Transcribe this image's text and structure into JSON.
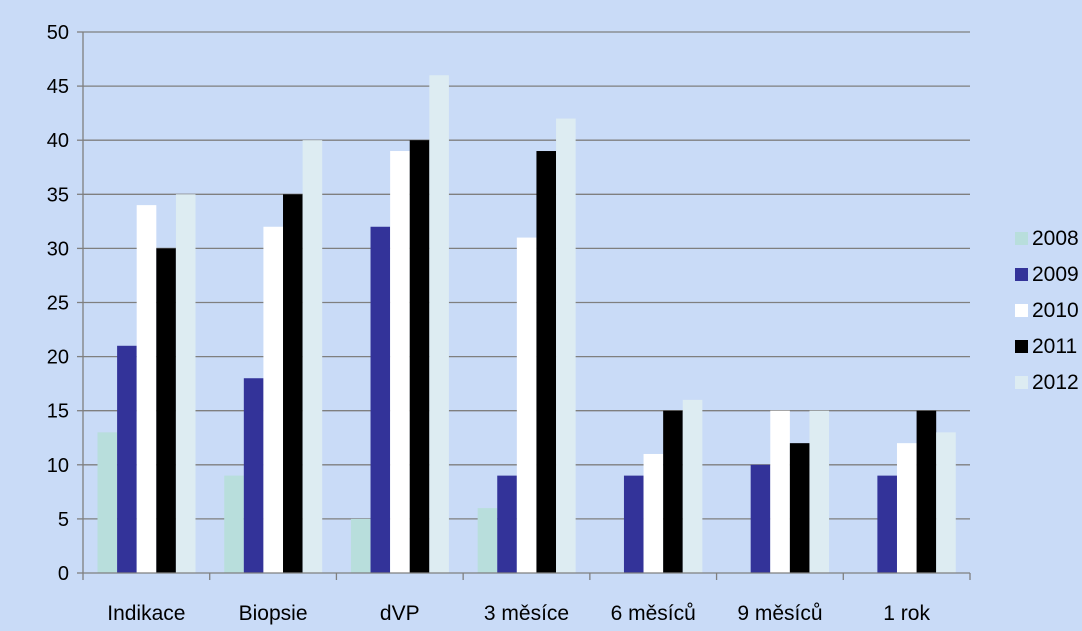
{
  "chart_data": {
    "type": "bar",
    "title": "",
    "xlabel": "",
    "ylabel": "",
    "ylim": [
      0,
      50
    ],
    "ytick_step": 5,
    "grid": true,
    "legend_position": "right",
    "categories": [
      "Indikace",
      "Biopsie",
      "dVP",
      "3 měsíce",
      "6 měsíců",
      "9 měsíců",
      "1 rok"
    ],
    "series": [
      {
        "name": "2008",
        "color": "#b8dedc",
        "values": [
          13,
          9,
          5,
          6,
          0,
          0,
          0
        ]
      },
      {
        "name": "2009",
        "color": "#333399",
        "values": [
          21,
          18,
          32,
          9,
          9,
          10,
          9
        ]
      },
      {
        "name": "2010",
        "color": "#ffffff",
        "values": [
          34,
          32,
          39,
          31,
          11,
          15,
          12
        ]
      },
      {
        "name": "2011",
        "color": "#000000",
        "values": [
          30,
          35,
          40,
          39,
          15,
          12,
          15
        ]
      },
      {
        "name": "2012",
        "color": "#ddecf2",
        "values": [
          35,
          40,
          46,
          42,
          16,
          15,
          13
        ]
      }
    ]
  }
}
